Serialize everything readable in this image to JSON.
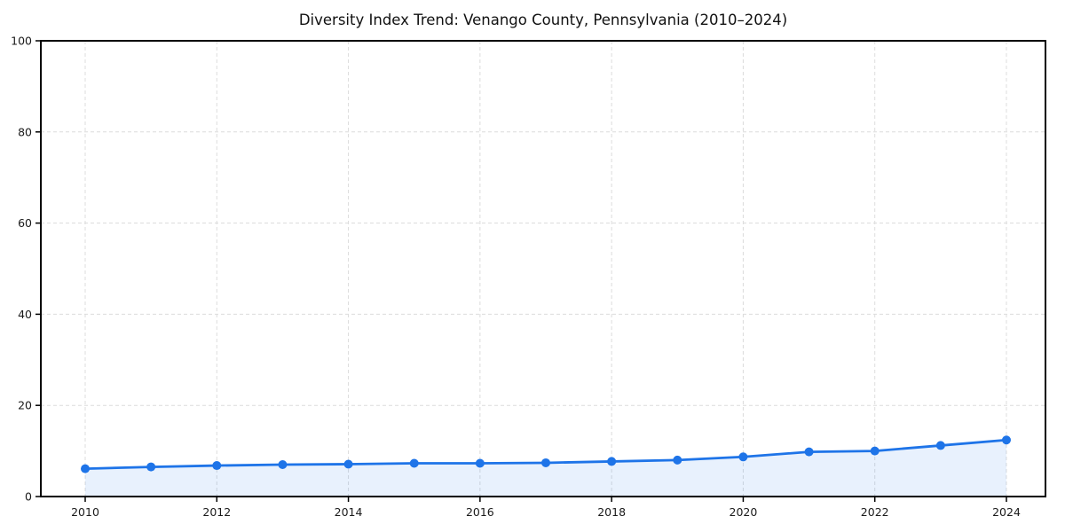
{
  "chart_data": {
    "type": "line",
    "title": "Diversity Index Trend: Venango County, Pennsylvania (2010–2024)",
    "x": [
      2010,
      2011,
      2012,
      2013,
      2014,
      2015,
      2016,
      2017,
      2018,
      2019,
      2020,
      2021,
      2022,
      2023,
      2024
    ],
    "series": [
      {
        "name": "Diversity Index",
        "values": [
          6.1,
          6.5,
          6.8,
          7.0,
          7.1,
          7.3,
          7.3,
          7.4,
          7.7,
          8.0,
          8.7,
          9.8,
          10.0,
          11.2,
          12.4
        ]
      }
    ],
    "xlabel": "",
    "ylabel": "",
    "xlim": [
      2010,
      2024
    ],
    "ylim": [
      0,
      100
    ],
    "xticks": [
      2010,
      2012,
      2014,
      2016,
      2018,
      2020,
      2022,
      2024
    ],
    "yticks": [
      0,
      20,
      40,
      60,
      80,
      100
    ],
    "grid": "dashed",
    "grid_color": "#dcdcdc",
    "legend": "none",
    "line_color": "#1e74e8",
    "marker": "circle",
    "marker_color": "#1e74e8",
    "fill_color": "#1e74e8",
    "fill_opacity": 0.1,
    "spine_color": "#000000",
    "background_color": "#ffffff"
  }
}
